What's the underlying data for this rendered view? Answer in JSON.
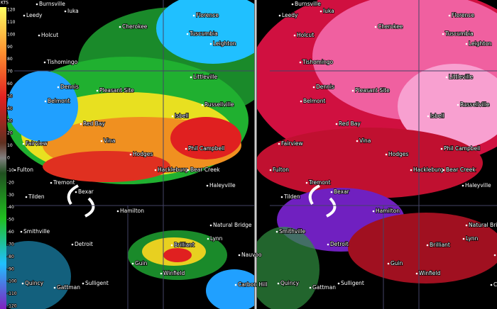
{
  "velocity_scale": {
    "unit": "KTS",
    "ticks": [
      120,
      110,
      100,
      90,
      80,
      70,
      60,
      50,
      40,
      30,
      20,
      10,
      0,
      -10,
      -20,
      -30,
      -40,
      -50,
      -60,
      -70,
      -80,
      -90,
      -100,
      -110,
      -120
    ]
  },
  "towns": [
    "Burnsville",
    "Iuka",
    "Leedy",
    "Holcut",
    "Florence",
    "Cherokee",
    "Tuscumbia",
    "Leighton",
    "Tishomingo",
    "Dennis",
    "Pleasant Site",
    "Littleville",
    "Belmont",
    "Russellville",
    "Isbell",
    "Red Bay",
    "Fairview",
    "Vina",
    "Hodges",
    "Phil Campbell",
    "Fulton",
    "Tremont",
    "Bexar",
    "Hackleburg",
    "Bear Creek",
    "Haleyville",
    "Tilden",
    "Hamilton",
    "Natural Bridge",
    "Smithville",
    "Detroit",
    "Brilliant",
    "Lynn",
    "Nauvoo",
    "Guin",
    "Winfield",
    "Carbon Hill",
    "Quincy",
    "Gattman",
    "Sulligent"
  ]
}
